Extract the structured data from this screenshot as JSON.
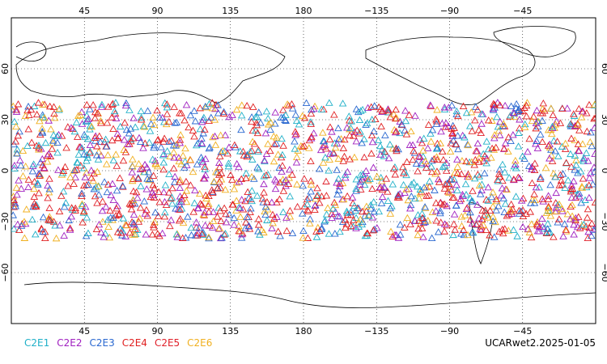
{
  "map": {
    "projection": "cylindrical-equidistant",
    "lon_range": [
      0,
      360
    ],
    "lat_range": [
      -90,
      90
    ],
    "center_lon": 180,
    "grid": "dotted"
  },
  "axes": {
    "top_lon_ticks": [
      "45",
      "90",
      "135",
      "180",
      "−135",
      "−90",
      "−45"
    ],
    "bottom_lon_ticks": [
      "45",
      "90",
      "135",
      "180",
      "−135",
      "−90",
      "−45"
    ],
    "lat_ticks": [
      "60",
      "30",
      "0",
      "−30",
      "−60"
    ]
  },
  "legend": [
    {
      "label": "C2E1",
      "color": "#20b0c8"
    },
    {
      "label": "C2E2",
      "color": "#a020c0"
    },
    {
      "label": "C2E3",
      "color": "#2a68d0"
    },
    {
      "label": "C2E4",
      "color": "#e02020"
    },
    {
      "label": "C2E5",
      "color": "#e0202a"
    },
    {
      "label": "C2E6",
      "color": "#f0b020"
    }
  ],
  "marker": {
    "shape": "triangle-open",
    "lat_extent": [
      -40,
      40
    ]
  },
  "stamp": "UCARwet2.2025-01-05"
}
